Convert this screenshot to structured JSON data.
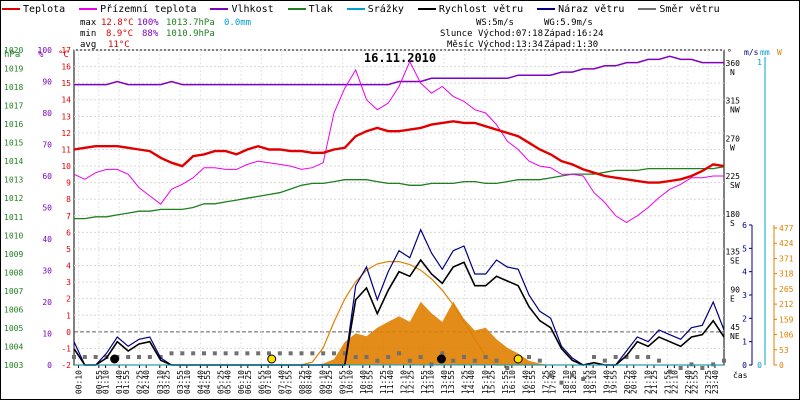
{
  "legend": [
    {
      "label": "Teplota",
      "color": "#e00000"
    },
    {
      "label": "Přízemní teplota",
      "color": "#ee00ee"
    },
    {
      "label": "Vlhkost",
      "color": "#8000c0"
    },
    {
      "label": "Tlak",
      "color": "#208020"
    },
    {
      "label": "Srážky",
      "color": "#00a0d0"
    },
    {
      "label": "Rychlost větru",
      "color": "#000000"
    },
    {
      "label": "Náraz větru",
      "color": "#000080"
    },
    {
      "label": "Směr větru",
      "color": "#707070"
    }
  ],
  "stats": {
    "max_label": "max",
    "max_temp": "12.8°C",
    "max_hum": "100%",
    "max_press": "1013.7hPa",
    "max_rain": "0.0mm",
    "min_label": "min",
    "min_temp": "8.9°C",
    "min_hum": "88%",
    "min_press": "1010.9hPa",
    "avg_label": "avg",
    "avg_temp": "11°C"
  },
  "info": {
    "ws": "WS:5m/s",
    "wg": "WG:5.9m/s",
    "sun_label": "Slunce",
    "sun_rise": "Východ:07:18",
    "sun_set": "Západ:16:24",
    "moon_label": "Měsíc",
    "moon_rise": "Východ:13:34",
    "moon_set": "Západ:1:30"
  },
  "colors": {
    "temp": "#e00000",
    "ground": "#ee00ee",
    "hum": "#8000c0",
    "press": "#208020",
    "rain": "#00a0d0",
    "wind": "#000000",
    "gust": "#000080",
    "dir": "#707070",
    "solar": "#e08000",
    "solar_line": "#e08000"
  },
  "chart_data": {
    "type": "line",
    "title": "16.11.2010",
    "x_axis_label": "čas",
    "x_ticks": [
      "00:10",
      "00:55",
      "01:40",
      "02:25",
      "03:10",
      "03:55",
      "04:40",
      "05:25",
      "06:10",
      "06:55",
      "07:40",
      "08:25",
      "09:10",
      "09:55",
      "10:40",
      "11:25",
      "12:10",
      "12:55",
      "13:40",
      "14:25",
      "15:10",
      "15:55",
      "16:40",
      "17:25",
      "18:10",
      "18:55",
      "19:40",
      "20:25",
      "21:10",
      "21:55",
      "22:40",
      "23:25"
    ],
    "x_ticks_b": [
      "01:10",
      "01:55",
      "02:40",
      "03:25",
      "04:10",
      "04:55",
      "05:40",
      "06:25",
      "07:10",
      "07:55",
      "08:40",
      "09:25",
      "10:10",
      "10:55",
      "11:40",
      "12:25",
      "13:10",
      "13:55",
      "14:40",
      "15:25",
      "16:10",
      "16:55",
      "17:40",
      "18:25",
      "19:10",
      "19:55",
      "20:40",
      "21:25",
      "22:10",
      "22:55",
      "23:40"
    ],
    "axes": {
      "hPa": {
        "label": "hPa",
        "ticks": [
          "1003",
          "1004",
          "1005",
          "1006",
          "1007",
          "1008",
          "1009",
          "1010",
          "1011",
          "1012",
          "1013",
          "1014",
          "1015",
          "1016",
          "1017",
          "1018",
          "1019",
          "1020"
        ],
        "range": [
          1003,
          1020
        ]
      },
      "percent": {
        "label": "%",
        "ticks": [
          "0",
          "10",
          "20",
          "30",
          "40",
          "50",
          "60",
          "70",
          "80",
          "90",
          "100"
        ],
        "range": [
          0,
          100
        ]
      },
      "celsius": {
        "label": "°C",
        "ticks": [
          "-2",
          "-1",
          "0",
          "1",
          "2",
          "3",
          "4",
          "5",
          "6",
          "7",
          "8",
          "9",
          "10",
          "11",
          "12",
          "13",
          "14",
          "15",
          "16",
          "17"
        ],
        "range": [
          -2,
          17
        ]
      },
      "direction": {
        "label": "°",
        "ticks": [
          "360",
          "315",
          "270",
          "225",
          "180",
          "135",
          "90",
          "45"
        ],
        "names": [
          "N",
          "NW",
          "W",
          "SW",
          "S",
          "SE",
          "E",
          "NE"
        ]
      },
      "wind": {
        "label": "m/s",
        "ticks": [
          "0",
          "1",
          "2",
          "3",
          "4",
          "5",
          "6"
        ],
        "range": [
          0,
          6
        ]
      },
      "rain": {
        "label": "mm",
        "ticks": [
          "0",
          "1"
        ]
      },
      "solar": {
        "label": "W",
        "ticks": [
          "0",
          "53",
          "106",
          "159",
          "212",
          "265",
          "318",
          "371",
          "424",
          "477"
        ],
        "range": [
          0,
          477
        ]
      }
    },
    "series": [
      {
        "name": "Teplota",
        "unit": "°C",
        "values": [
          11.0,
          11.1,
          11.2,
          11.2,
          11.2,
          11.1,
          11.0,
          10.9,
          10.5,
          10.2,
          10.0,
          10.6,
          10.7,
          10.9,
          10.9,
          10.7,
          11.0,
          11.2,
          11.0,
          11.0,
          10.9,
          10.9,
          10.8,
          10.8,
          11.0,
          11.1,
          11.8,
          12.1,
          12.3,
          12.1,
          12.1,
          12.2,
          12.3,
          12.5,
          12.6,
          12.7,
          12.6,
          12.6,
          12.4,
          12.2,
          12.0,
          11.8,
          11.4,
          11.0,
          10.7,
          10.3,
          10.1,
          9.8,
          9.6,
          9.4,
          9.3,
          9.2,
          9.1,
          9.0,
          9.0,
          9.1,
          9.2,
          9.4,
          9.7,
          10.1,
          10.0
        ]
      },
      {
        "name": "Přízemní teplota",
        "unit": "°C",
        "values": [
          9.5,
          9.2,
          9.6,
          9.8,
          9.8,
          9.5,
          8.7,
          8.2,
          7.7,
          8.6,
          8.9,
          9.3,
          9.9,
          9.9,
          9.8,
          9.8,
          10.1,
          10.3,
          10.2,
          10.1,
          10.0,
          9.8,
          9.9,
          10.2,
          13.2,
          14.7,
          15.8,
          14.0,
          13.4,
          13.8,
          14.8,
          16.3,
          15.0,
          14.4,
          14.8,
          14.2,
          13.9,
          13.4,
          13.2,
          12.5,
          11.5,
          11.0,
          10.3,
          10.0,
          9.9,
          9.5,
          9.5,
          9.4,
          8.4,
          7.8,
          7.0,
          6.6,
          7.0,
          7.5,
          8.1,
          8.6,
          8.9,
          9.3,
          9.3,
          9.4,
          9.4
        ]
      },
      {
        "name": "Vlhkost",
        "unit": "%",
        "values": [
          89,
          89,
          89,
          89,
          90,
          89,
          89,
          89,
          89,
          90,
          89,
          89,
          89,
          89,
          89,
          89,
          89,
          89,
          89,
          89,
          89,
          89,
          89,
          89,
          89,
          89,
          89,
          89,
          89,
          89,
          90,
          90,
          90,
          91,
          91,
          91,
          91,
          91,
          91,
          91,
          91,
          92,
          92,
          92,
          92,
          93,
          93,
          94,
          94,
          95,
          95,
          96,
          96,
          97,
          97,
          98,
          97,
          97,
          96,
          96,
          96
        ]
      },
      {
        "name": "Tlak",
        "unit": "hPa",
        "values": [
          1010.9,
          1010.9,
          1011.0,
          1011.0,
          1011.1,
          1011.2,
          1011.3,
          1011.3,
          1011.4,
          1011.4,
          1011.4,
          1011.5,
          1011.7,
          1011.7,
          1011.8,
          1011.9,
          1012.0,
          1012.1,
          1012.2,
          1012.3,
          1012.5,
          1012.7,
          1012.8,
          1012.8,
          1012.9,
          1013.0,
          1013.0,
          1013.0,
          1012.9,
          1012.8,
          1012.8,
          1012.7,
          1012.7,
          1012.8,
          1012.8,
          1012.8,
          1012.9,
          1012.9,
          1012.8,
          1012.8,
          1012.9,
          1013.0,
          1013.0,
          1013.0,
          1013.1,
          1013.2,
          1013.3,
          1013.3,
          1013.3,
          1013.4,
          1013.5,
          1013.5,
          1013.5,
          1013.6,
          1013.6,
          1013.6,
          1013.6,
          1013.6,
          1013.6,
          1013.6,
          1013.7
        ]
      },
      {
        "name": "Rychlost větru",
        "unit": "m/s",
        "values": [
          0.7,
          0.0,
          0.0,
          0.3,
          1.0,
          0.6,
          0.9,
          1.0,
          0.2,
          0.0,
          0.0,
          0.0,
          0.0,
          0.0,
          0.0,
          0.0,
          0.0,
          0.0,
          0.0,
          0.0,
          0.0,
          0.0,
          0.0,
          0.0,
          0.0,
          0.0,
          2.8,
          3.3,
          2.2,
          3.2,
          4.0,
          3.8,
          4.5,
          3.9,
          3.5,
          4.2,
          4.4,
          3.4,
          3.4,
          3.8,
          3.6,
          3.4,
          2.5,
          1.9,
          1.6,
          0.7,
          0.2,
          0.0,
          0.1,
          0.0,
          0.0,
          0.4,
          1.0,
          0.8,
          1.2,
          1.0,
          0.8,
          1.2,
          1.3,
          1.9,
          1.2
        ]
      },
      {
        "name": "Náraz větru",
        "unit": "m/s",
        "values": [
          1.0,
          0.0,
          0.0,
          0.5,
          1.2,
          0.8,
          1.1,
          1.2,
          0.3,
          0.0,
          0.0,
          0.0,
          0.0,
          0.0,
          0.0,
          0.0,
          0.0,
          0.0,
          0.0,
          0.0,
          0.0,
          0.0,
          0.0,
          0.0,
          0.0,
          0.0,
          3.4,
          4.2,
          2.8,
          4.0,
          4.9,
          4.6,
          5.8,
          4.8,
          4.1,
          4.9,
          5.1,
          3.9,
          3.9,
          4.5,
          4.2,
          4.1,
          3.0,
          2.3,
          2.0,
          0.8,
          0.3,
          0.0,
          0.1,
          0.0,
          0.0,
          0.6,
          1.2,
          1.0,
          1.5,
          1.3,
          1.1,
          1.6,
          1.7,
          2.7,
          1.5
        ]
      },
      {
        "name": "Směr větru",
        "unit": "°",
        "values": [
          45,
          45,
          45,
          45,
          45,
          45,
          45,
          45,
          45,
          50,
          50,
          50,
          50,
          50,
          50,
          50,
          50,
          50,
          50,
          50,
          50,
          50,
          50,
          50,
          50,
          50,
          45,
          45,
          40,
          45,
          50,
          40,
          45,
          35,
          50,
          40,
          45,
          40,
          45,
          40,
          30,
          40,
          45,
          40,
          20,
          10,
          20,
          15,
          45,
          40,
          45,
          45,
          45,
          45,
          40,
          25,
          30,
          35,
          30,
          35,
          40
        ]
      },
      {
        "name": "Srážky",
        "unit": "mm",
        "values": [
          0,
          0,
          0,
          0,
          0,
          0,
          0,
          0,
          0,
          0,
          0,
          0,
          0,
          0,
          0,
          0,
          0,
          0,
          0,
          0,
          0,
          0,
          0,
          0,
          0,
          0,
          0,
          0,
          0,
          0,
          0,
          0,
          0,
          0,
          0,
          0,
          0,
          0,
          0,
          0,
          0,
          0,
          0,
          0,
          0,
          0,
          0,
          0,
          0,
          0,
          0,
          0,
          0,
          0,
          0,
          0,
          0,
          0,
          0,
          0,
          0
        ]
      },
      {
        "name": "Sluneční záření",
        "unit": "W",
        "values": [
          0,
          0,
          0,
          0,
          0,
          0,
          0,
          0,
          0,
          0,
          0,
          0,
          0,
          0,
          0,
          0,
          0,
          0,
          0,
          0,
          0,
          0,
          0,
          5,
          20,
          80,
          110,
          100,
          130,
          150,
          170,
          150,
          220,
          180,
          150,
          220,
          160,
          120,
          130,
          90,
          60,
          40,
          15,
          5,
          0,
          0,
          0,
          0,
          0,
          0,
          0,
          0,
          0,
          0,
          0,
          0,
          0,
          0,
          0,
          0,
          0
        ]
      },
      {
        "name": "Teoretické záření",
        "unit": "W",
        "values": [
          0,
          0,
          0,
          0,
          0,
          0,
          0,
          0,
          0,
          0,
          0,
          0,
          0,
          0,
          0,
          0,
          0,
          0,
          0,
          0,
          0,
          0,
          10,
          60,
          150,
          230,
          290,
          330,
          352,
          360,
          360,
          350,
          330,
          300,
          260,
          210,
          150,
          90,
          30,
          0,
          0,
          0,
          0,
          0,
          0,
          0,
          0,
          0,
          0,
          0,
          0,
          0,
          0,
          0,
          0,
          0,
          0,
          0,
          0,
          0,
          0
        ]
      }
    ],
    "markers": [
      {
        "name": "Západ měsíce",
        "x": "01:30",
        "color": "#000000"
      },
      {
        "name": "Východ slunce",
        "x": "07:18",
        "color": "#ffe000"
      },
      {
        "name": "Východ měsíce",
        "x": "13:34",
        "color": "#000000"
      },
      {
        "name": "Západ slunce",
        "x": "16:24",
        "color": "#ffe000"
      }
    ]
  }
}
